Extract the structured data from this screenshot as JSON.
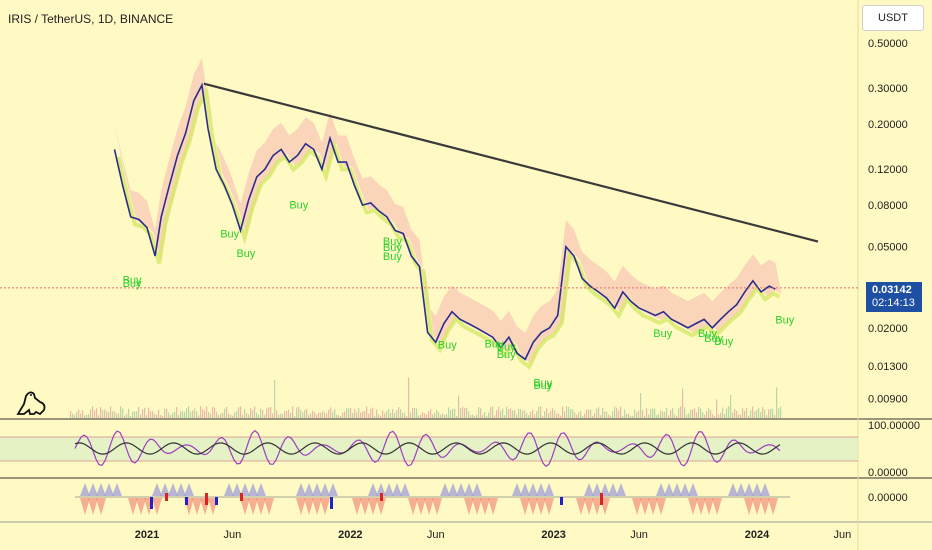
{
  "header": {
    "title": "IRIS / TetherUS, 1D, BINANCE"
  },
  "toolbar": {
    "currency_label": "USDT"
  },
  "last_price": {
    "price": "0.03142",
    "countdown": "02:14:13"
  },
  "chart_data": {
    "type": "line",
    "title": "IRIS / TetherUS, 1D, BINANCE",
    "y_scale": "log",
    "price_ticks": [
      "0.50000",
      "0.30000",
      "0.20000",
      "0.12000",
      "0.08000",
      "0.05000",
      "0.02000",
      "0.01300",
      "0.00900"
    ],
    "price_tick_values": [
      0.5,
      0.3,
      0.2,
      0.12,
      0.08,
      0.05,
      0.02,
      0.013,
      0.009
    ],
    "x_ticks": [
      "2021",
      "Jun",
      "2022",
      "Jun",
      "2023",
      "Jun",
      "2024",
      "Jun"
    ],
    "x_tick_values": [
      2021.0,
      2021.42,
      2022.0,
      2022.42,
      2023.0,
      2023.42,
      2024.0,
      2024.42
    ],
    "x_range": [
      2020.78,
      2024.52
    ],
    "series": [
      {
        "values": [
          [
            2020.84,
            0.15
          ],
          [
            2020.88,
            0.1
          ],
          [
            2020.92,
            0.07
          ],
          [
            2020.96,
            0.068
          ],
          [
            2021.0,
            0.062
          ],
          [
            2021.04,
            0.045
          ],
          [
            2021.07,
            0.07
          ],
          [
            2021.11,
            0.1
          ],
          [
            2021.15,
            0.14
          ],
          [
            2021.19,
            0.18
          ],
          [
            2021.23,
            0.26
          ],
          [
            2021.27,
            0.31
          ],
          [
            2021.3,
            0.19
          ],
          [
            2021.34,
            0.12
          ],
          [
            2021.38,
            0.1
          ],
          [
            2021.42,
            0.08
          ],
          [
            2021.46,
            0.06
          ],
          [
            2021.5,
            0.085
          ],
          [
            2021.54,
            0.11
          ],
          [
            2021.58,
            0.12
          ],
          [
            2021.62,
            0.14
          ],
          [
            2021.66,
            0.15
          ],
          [
            2021.7,
            0.13
          ],
          [
            2021.74,
            0.14
          ],
          [
            2021.78,
            0.16
          ],
          [
            2021.82,
            0.15
          ],
          [
            2021.86,
            0.12
          ],
          [
            2021.9,
            0.17
          ],
          [
            2021.94,
            0.13
          ],
          [
            2021.98,
            0.13
          ],
          [
            2022.02,
            0.1
          ],
          [
            2022.06,
            0.08
          ],
          [
            2022.1,
            0.082
          ],
          [
            2022.14,
            0.075
          ],
          [
            2022.18,
            0.07
          ],
          [
            2022.22,
            0.06
          ],
          [
            2022.26,
            0.058
          ],
          [
            2022.3,
            0.045
          ],
          [
            2022.34,
            0.04
          ],
          [
            2022.38,
            0.019
          ],
          [
            2022.42,
            0.017
          ],
          [
            2022.46,
            0.021
          ],
          [
            2022.5,
            0.024
          ],
          [
            2022.54,
            0.022
          ],
          [
            2022.58,
            0.021
          ],
          [
            2022.62,
            0.02
          ],
          [
            2022.66,
            0.019
          ],
          [
            2022.7,
            0.018
          ],
          [
            2022.74,
            0.016
          ],
          [
            2022.78,
            0.018
          ],
          [
            2022.82,
            0.015
          ],
          [
            2022.86,
            0.014
          ],
          [
            2022.9,
            0.017
          ],
          [
            2022.94,
            0.019
          ],
          [
            2022.98,
            0.02
          ],
          [
            2023.02,
            0.023
          ],
          [
            2023.06,
            0.05
          ],
          [
            2023.1,
            0.045
          ],
          [
            2023.14,
            0.035
          ],
          [
            2023.18,
            0.032
          ],
          [
            2023.22,
            0.03
          ],
          [
            2023.26,
            0.028
          ],
          [
            2023.3,
            0.025
          ],
          [
            2023.34,
            0.03
          ],
          [
            2023.38,
            0.027
          ],
          [
            2023.42,
            0.025
          ],
          [
            2023.46,
            0.024
          ],
          [
            2023.5,
            0.023
          ],
          [
            2023.54,
            0.024
          ],
          [
            2023.58,
            0.022
          ],
          [
            2023.62,
            0.021
          ],
          [
            2023.66,
            0.02
          ],
          [
            2023.7,
            0.021
          ],
          [
            2023.74,
            0.022
          ],
          [
            2023.78,
            0.02
          ],
          [
            2023.82,
            0.022
          ],
          [
            2023.86,
            0.024
          ],
          [
            2023.9,
            0.026
          ],
          [
            2023.94,
            0.03
          ],
          [
            2023.98,
            0.034
          ],
          [
            2024.02,
            0.03
          ],
          [
            2024.06,
            0.032
          ],
          [
            2024.09,
            0.031
          ]
        ]
      }
    ],
    "trendline": [
      [
        2021.28,
        0.315
      ],
      [
        2024.3,
        0.053
      ]
    ],
    "buy_labels": [
      {
        "x": 2020.88,
        "y": 0.033,
        "text": "Buy"
      },
      {
        "x": 2020.88,
        "y": 0.0318,
        "text": "Buy"
      },
      {
        "x": 2021.36,
        "y": 0.0555,
        "text": "Buy"
      },
      {
        "x": 2021.44,
        "y": 0.0445,
        "text": "Buy"
      },
      {
        "x": 2021.7,
        "y": 0.077,
        "text": "Buy"
      },
      {
        "x": 2022.16,
        "y": 0.051,
        "text": "Buy"
      },
      {
        "x": 2022.16,
        "y": 0.0475,
        "text": "Buy"
      },
      {
        "x": 2022.16,
        "y": 0.043,
        "text": "Buy"
      },
      {
        "x": 2022.43,
        "y": 0.0158,
        "text": "Buy"
      },
      {
        "x": 2022.66,
        "y": 0.016,
        "text": "Buy"
      },
      {
        "x": 2022.72,
        "y": 0.0155,
        "text": "Buy"
      },
      {
        "x": 2022.72,
        "y": 0.0142,
        "text": "Buy"
      },
      {
        "x": 2022.9,
        "y": 0.0103,
        "text": "Buy"
      },
      {
        "x": 2022.9,
        "y": 0.01,
        "text": "Buy"
      },
      {
        "x": 2023.49,
        "y": 0.018,
        "text": "Buy"
      },
      {
        "x": 2023.71,
        "y": 0.018,
        "text": "Buy"
      },
      {
        "x": 2023.74,
        "y": 0.017,
        "text": "Buy"
      },
      {
        "x": 2023.79,
        "y": 0.0165,
        "text": "Buy"
      },
      {
        "x": 2024.09,
        "y": 0.021,
        "text": "Buy"
      }
    ],
    "rsi_ticks": [
      "100.00000",
      "0.00000"
    ],
    "rsi_tick_values": [
      100,
      0
    ],
    "oscillator_ticks": [
      "0.00000"
    ],
    "oscillator_tick_values": [
      0
    ],
    "last_price_value": 0.03142
  }
}
